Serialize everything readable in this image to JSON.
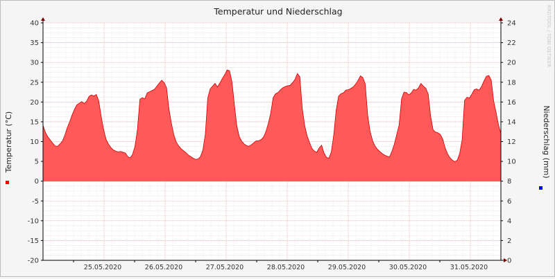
{
  "chart_data": {
    "type": "area",
    "title": "Temperatur und Niederschlag",
    "watermark": "RRDTOOL / TOBI OETIKER",
    "y_left": {
      "label": "Temperatur (°C)",
      "min": -20,
      "max": 40,
      "ticks": [
        40,
        35,
        30,
        25,
        20,
        15,
        10,
        5,
        0,
        -5,
        -10,
        -15,
        -20
      ]
    },
    "y_right": {
      "label": "Niederschlag (mm)",
      "min": 0,
      "max": 24,
      "ticks": [
        24,
        22,
        20,
        18,
        16,
        14,
        12,
        10,
        8,
        6,
        4,
        2,
        0
      ]
    },
    "x": {
      "start_day": "24.05.2020 12:00",
      "end_day": "31.05.2020 23:00",
      "tick_labels": [
        "25.05.2020",
        "26.05.2020",
        "27.05.2020",
        "28.05.2020",
        "29.05.2020",
        "30.05.2020",
        "31.05.2020"
      ]
    },
    "legend_markers": [
      {
        "series": "Temperatur",
        "color": "#ff0000"
      },
      {
        "series": "Niederschlag",
        "color": "#0000ff"
      }
    ],
    "series": [
      {
        "name": "Temperatur",
        "color": "#ff5959",
        "line_color": "#cc0000",
        "values": [
          14.1,
          12.3,
          11.2,
          10.4,
          9.6,
          8.9,
          8.8,
          9.4,
          10.1,
          11.6,
          13.5,
          15.0,
          16.7,
          18.2,
          19.3,
          19.7,
          20.1,
          19.6,
          20.2,
          21.4,
          21.8,
          21.5,
          21.9,
          20.3,
          16.4,
          13.1,
          10.6,
          9.4,
          8.5,
          7.9,
          7.6,
          7.4,
          7.5,
          7.3,
          7.1,
          6.2,
          5.9,
          6.8,
          8.9,
          13.2,
          20.7,
          21.1,
          20.8,
          22.3,
          22.6,
          22.9,
          23.2,
          24.0,
          24.8,
          25.5,
          24.9,
          23.6,
          18.2,
          14.6,
          11.7,
          9.9,
          8.9,
          8.2,
          7.7,
          7.2,
          6.6,
          6.2,
          5.8,
          5.5,
          5.6,
          6.2,
          7.9,
          11.9,
          21.0,
          23.3,
          24.0,
          24.7,
          23.8,
          24.8,
          25.9,
          26.9,
          28.1,
          27.9,
          25.1,
          19.3,
          14.0,
          11.3,
          10.1,
          9.4,
          9.0,
          8.8,
          9.2,
          9.7,
          10.2,
          10.2,
          10.5,
          11.1,
          12.5,
          14.6,
          17.2,
          21.1,
          22.1,
          22.4,
          23.1,
          23.6,
          23.9,
          24.1,
          24.2,
          24.9,
          25.7,
          27.2,
          26.4,
          18.5,
          14.1,
          11.5,
          9.8,
          8.3,
          7.6,
          7.3,
          8.4,
          9.1,
          7.1,
          6.0,
          5.8,
          7.4,
          11.6,
          17.9,
          21.5,
          22.1,
          22.3,
          23.0,
          23.1,
          23.4,
          23.8,
          24.5,
          25.4,
          26.6,
          26.2,
          24.6,
          16.8,
          12.6,
          10.3,
          8.9,
          8.1,
          7.5,
          7.0,
          6.6,
          6.3,
          6.1,
          7.5,
          9.3,
          11.8,
          14.2,
          20.8,
          22.5,
          22.4,
          21.8,
          22.3,
          23.2,
          23.0,
          23.6,
          24.7,
          24.0,
          23.5,
          22.0,
          16.4,
          13.0,
          12.4,
          12.2,
          11.8,
          10.6,
          8.4,
          6.9,
          5.9,
          5.3,
          4.9,
          5.3,
          7.0,
          10.5,
          20.4,
          21.2,
          21.0,
          22.0,
          23.1,
          23.3,
          23.0,
          23.9,
          25.3,
          26.5,
          26.7,
          25.6,
          20.3,
          17.4,
          14.3,
          12.0
        ]
      },
      {
        "name": "Niederschlag",
        "color": "#0000ff",
        "values": []
      }
    ]
  }
}
